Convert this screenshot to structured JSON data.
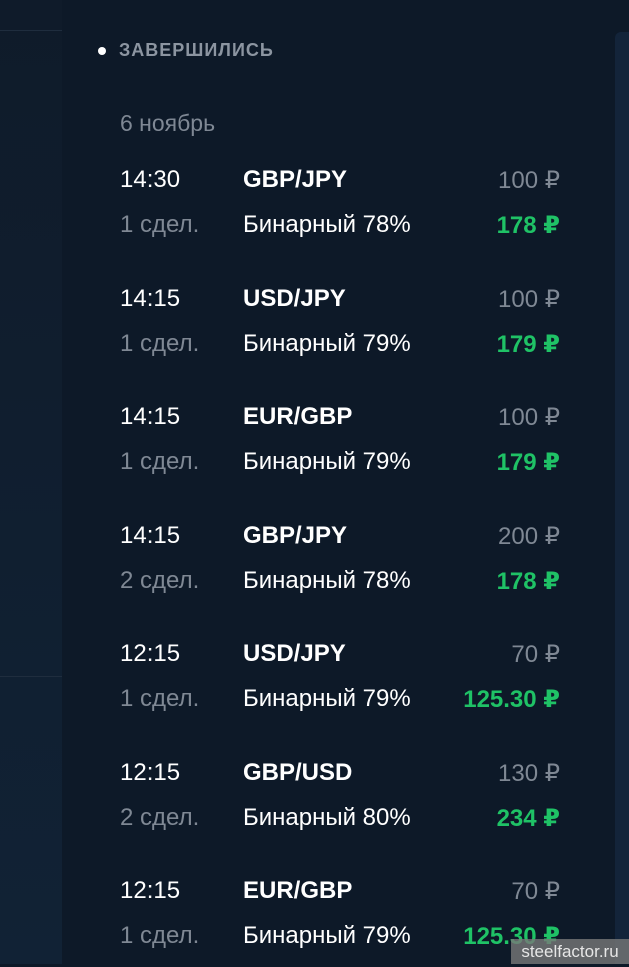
{
  "section": {
    "title": "ЗАВЕРШИЛИСЬ"
  },
  "date": "6 ноябрь",
  "colors": {
    "profit": "#1fc266",
    "muted": "#7f8894",
    "background": "#0d1928"
  },
  "trades": [
    {
      "time": "14:30",
      "pair": "GBP/JPY",
      "amount": "100 ₽",
      "count": "1 сдел.",
      "type": "Бинарный 78%",
      "payout": "178 ₽"
    },
    {
      "time": "14:15",
      "pair": "USD/JPY",
      "amount": "100 ₽",
      "count": "1 сдел.",
      "type": "Бинарный 79%",
      "payout": "179 ₽"
    },
    {
      "time": "14:15",
      "pair": "EUR/GBP",
      "amount": "100 ₽",
      "count": "1 сдел.",
      "type": "Бинарный 79%",
      "payout": "179 ₽"
    },
    {
      "time": "14:15",
      "pair": "GBP/JPY",
      "amount": "200 ₽",
      "count": "2 сдел.",
      "type": "Бинарный 78%",
      "payout": "178 ₽"
    },
    {
      "time": "12:15",
      "pair": "USD/JPY",
      "amount": "70 ₽",
      "count": "1 сдел.",
      "type": "Бинарный 79%",
      "payout": "125.30 ₽"
    },
    {
      "time": "12:15",
      "pair": "GBP/USD",
      "amount": "130 ₽",
      "count": "2 сдел.",
      "type": "Бинарный 80%",
      "payout": "234 ₽"
    },
    {
      "time": "12:15",
      "pair": "EUR/GBP",
      "amount": "70 ₽",
      "count": "1 сдел.",
      "type": "Бинарный 79%",
      "payout": "125.30 ₽"
    }
  ],
  "watermark": "steelfactor.ru"
}
